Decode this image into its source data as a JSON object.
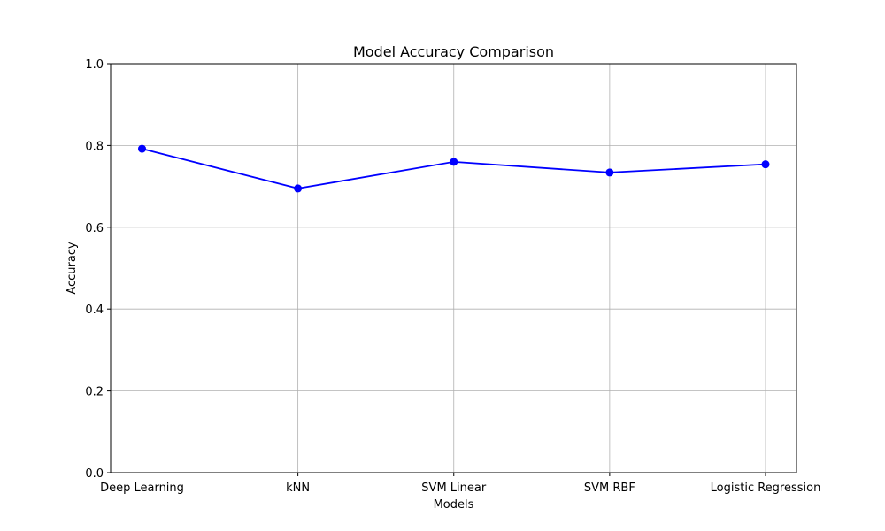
{
  "chart_data": {
    "type": "line",
    "title": "Model Accuracy Comparison",
    "xlabel": "Models",
    "ylabel": "Accuracy",
    "categories": [
      "Deep Learning",
      "kNN",
      "SVM Linear",
      "SVM RBF",
      "Logistic Regression"
    ],
    "series": [
      {
        "values": [
          0.792,
          0.695,
          0.76,
          0.734,
          0.754
        ],
        "color": "#0000ff",
        "marker": "circle"
      }
    ],
    "ylim": [
      0,
      1.0
    ],
    "yticks": [
      "0.0",
      "0.2",
      "0.4",
      "0.6",
      "0.8",
      "1.0"
    ],
    "grid": true,
    "legend": "none"
  }
}
